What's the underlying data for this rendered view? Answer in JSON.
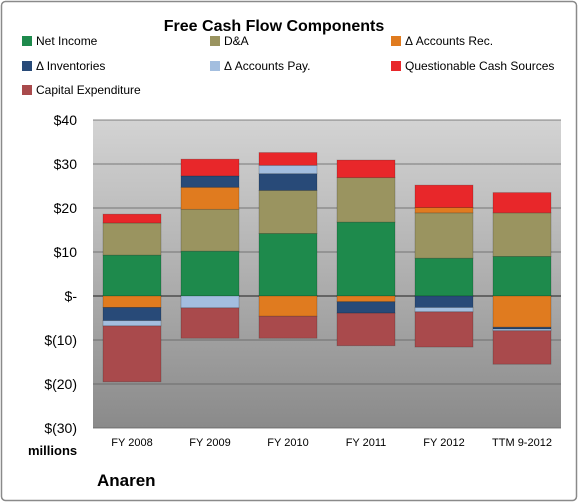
{
  "chart_data": {
    "type": "bar",
    "stacked": true,
    "title": "Free Cash Flow Components",
    "unit_label": "millions",
    "company": "Anaren",
    "categories": [
      "FY 2008",
      "FY 2009",
      "FY 2010",
      "FY 2011",
      "FY 2012",
      "TTM 9-2012"
    ],
    "ylim": [
      -30,
      40
    ],
    "yticks": [
      40,
      30,
      20,
      10,
      0,
      -10,
      -20,
      -30
    ],
    "ytick_labels": [
      "$40",
      "$30",
      "$20",
      "$10",
      "$-",
      "$(10)",
      "$(20)",
      "$(30)"
    ],
    "grid": true,
    "legend_position": "top",
    "series": [
      {
        "name": "Net Income",
        "color": "#1e8a4c",
        "values": [
          9.3,
          10.2,
          14.2,
          16.8,
          8.6,
          9.0
        ]
      },
      {
        "name": "D&A",
        "color": "#9a9460",
        "values": [
          7.3,
          9.5,
          9.8,
          10.1,
          10.3,
          9.9
        ]
      },
      {
        "name": "Δ Accounts Rec.",
        "color": "#e07b1f",
        "values": [
          -2.6,
          5.0,
          -4.6,
          -1.3,
          1.2,
          -7.1
        ]
      },
      {
        "name": "Δ Inventories",
        "color": "#284a78",
        "values": [
          -3.0,
          2.6,
          3.8,
          -2.6,
          -2.6,
          -0.4
        ]
      },
      {
        "name": "Δ Accounts Pay.",
        "color": "#a3bedf",
        "values": [
          -1.2,
          -2.7,
          1.9,
          0.0,
          -1.0,
          -0.4
        ]
      },
      {
        "name": "Questionable Cash Sources",
        "color": "#e8272a",
        "values": [
          2.0,
          3.8,
          2.9,
          4.0,
          5.1,
          4.6
        ]
      },
      {
        "name": "Capital Expenditure",
        "color": "#a94a4c",
        "values": [
          -12.7,
          -6.9,
          -5.0,
          -7.4,
          -8.0,
          -7.6
        ]
      }
    ]
  }
}
